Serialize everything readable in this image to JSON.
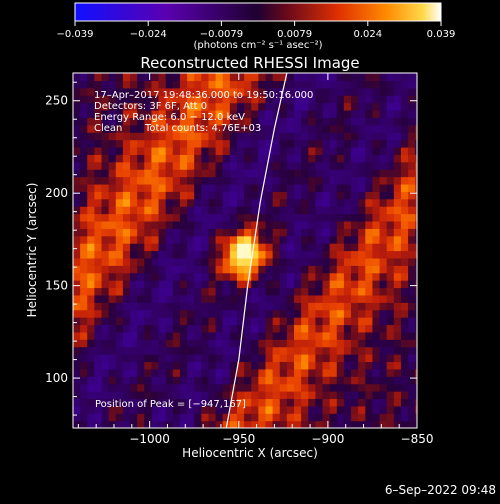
{
  "chart_data": {
    "type": "heatmap",
    "title": "Reconstructed RHESSI Image",
    "xlabel": "Heliocentric X (arcsec)",
    "ylabel": "Heliocentric Y (arcsec)",
    "xlim": [
      -1043,
      -850
    ],
    "ylim": [
      73,
      265
    ],
    "x_ticks": [
      -1000,
      -950,
      -900,
      -850
    ],
    "x_tick_labels": [
      "−1000",
      "−950",
      "−900",
      "−850"
    ],
    "y_ticks": [
      100,
      150,
      200,
      250
    ],
    "y_tick_labels": [
      "100",
      "150",
      "200",
      "250"
    ],
    "colorbar": {
      "range": [
        -0.039,
        0.039
      ],
      "tick_labels": [
        "−0.039",
        "−0.024",
        "−0.0079",
        "0.0079",
        "0.024",
        "0.039"
      ],
      "unit_label": "(photons cm⁻² s⁻¹ asec⁻²)",
      "colormap": [
        "#0000ff",
        "#4400aa",
        "#3a0066",
        "#2a0050",
        "#5c0a2a",
        "#9a1a10",
        "#d83a00",
        "#ff7a00",
        "#ffc000",
        "#fff6c0"
      ]
    },
    "annotations": {
      "time_range": "17–Apr–2017 19:48:36.000 to 19:50:16.000",
      "detectors": "Detectors: 3F 6F, Att 0",
      "energy": "Energy Range: 6.0 − 12.0 keV",
      "clean_label": "Clean",
      "total_counts": "Total counts: 4.76E+03",
      "peak": "Position of Peak = [−947,167]"
    },
    "peak_position": [
      -947,
      167
    ],
    "limb_curve": [
      [
        -957,
        73
      ],
      [
        -950,
        110
      ],
      [
        -945,
        150
      ],
      [
        -938,
        195
      ],
      [
        -930,
        235
      ],
      [
        -923,
        265
      ]
    ]
  },
  "footer": {
    "date": "6–Sep–2022 09:48"
  }
}
